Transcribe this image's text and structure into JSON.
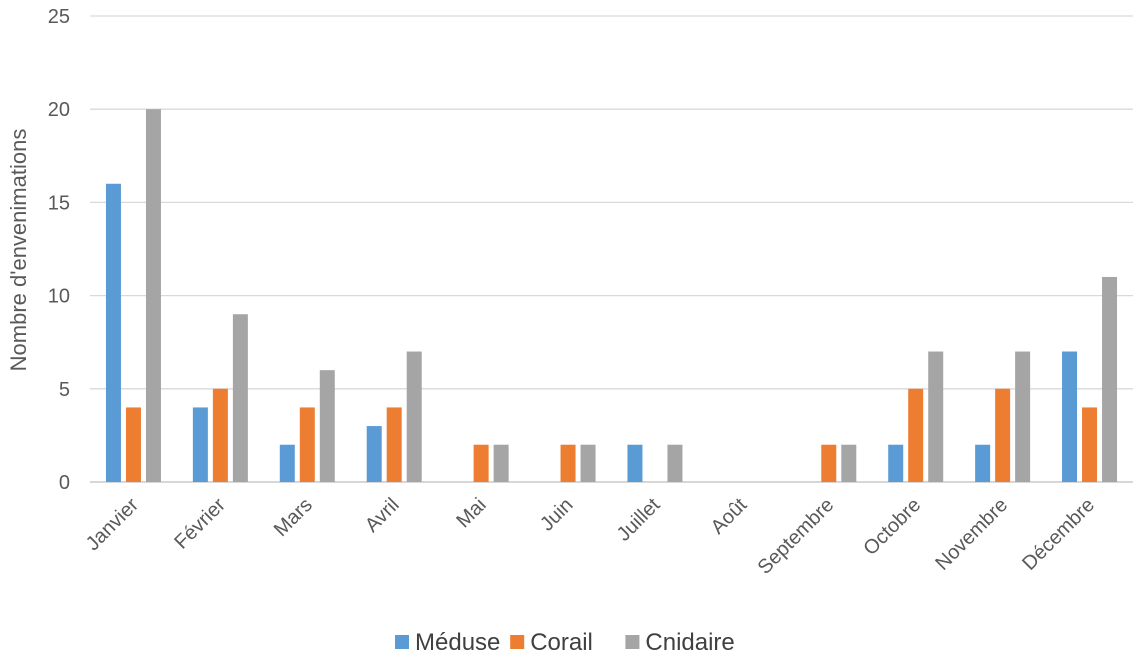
{
  "chart_data": {
    "type": "bar",
    "title": "",
    "xlabel": "",
    "ylabel": "Nombre d'envenimations",
    "ylim": [
      0,
      25
    ],
    "yticks": [
      0,
      5,
      10,
      15,
      20,
      25
    ],
    "grid": true,
    "legend_position": "bottom",
    "categories": [
      "Janvier",
      "Février",
      "Mars",
      "Avril",
      "Mai",
      "Juin",
      "Juillet",
      "Août",
      "Septembre",
      "Octobre",
      "Novembre",
      "Décembre"
    ],
    "series": [
      {
        "name": "Méduse",
        "color": "#5B9BD5",
        "values": [
          16,
          4,
          2,
          3,
          0,
          0,
          2,
          0,
          0,
          2,
          2,
          7
        ]
      },
      {
        "name": "Corail",
        "color": "#ED7D31",
        "values": [
          4,
          5,
          4,
          4,
          2,
          2,
          0,
          0,
          2,
          5,
          5,
          4
        ]
      },
      {
        "name": "Cnidaire",
        "color": "#A5A5A5",
        "values": [
          20,
          9,
          6,
          7,
          2,
          2,
          2,
          0,
          2,
          7,
          7,
          11
        ]
      }
    ]
  }
}
